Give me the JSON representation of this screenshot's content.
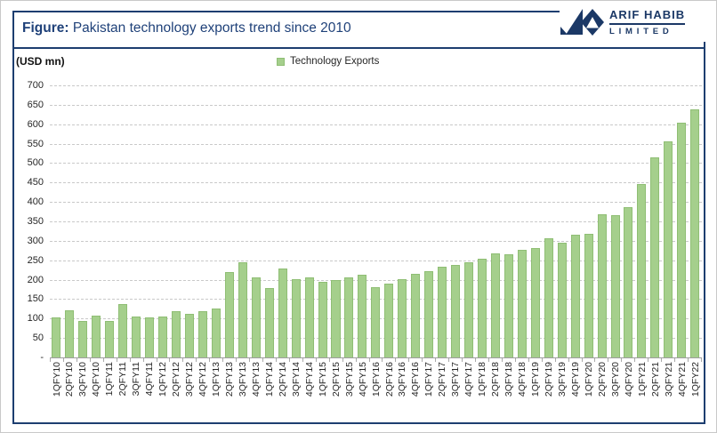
{
  "header": {
    "title_prefix": "Figure:",
    "title_text": " Pakistan technology exports trend since 2010"
  },
  "logo": {
    "name": "ARIF HABIB",
    "subtitle": "LIMITED"
  },
  "legend": {
    "label": "Technology Exports"
  },
  "y_axis": {
    "unit_label": "(USD mn)",
    "zero_label": "-"
  },
  "colors": {
    "navy": "#1d3e70",
    "bar_fill": "#a5cf8c",
    "bar_border": "#8fbe74",
    "gridline": "#c9c9c9",
    "axis": "#9e9e9e",
    "label_text": "#262626"
  },
  "chart_data": {
    "type": "bar",
    "title": "Pakistan technology exports trend since 2010",
    "ylabel": "(USD mn)",
    "series_name": "Technology Exports",
    "ylim": [
      0,
      700
    ],
    "ytick_step": 50,
    "grid": "horizontal-dashed",
    "legend_position": "top-center",
    "x_label_rotation": -90,
    "categories": [
      "1QFY10",
      "2QFY10",
      "3QFY10",
      "4QFY10",
      "1QFY11",
      "2QFY11",
      "3QFY11",
      "4QFY11",
      "1QFY12",
      "2QFY12",
      "3QFY12",
      "4QFY12",
      "1QFY13",
      "2QFY13",
      "3QFY13",
      "4QFY13",
      "1QFY14",
      "2QFY14",
      "3QFY14",
      "4QFY14",
      "1QFY15",
      "2QFY15",
      "3QFY15",
      "4QFY15",
      "1QFY16",
      "2QFY16",
      "3QFY16",
      "4QFY16",
      "1QFY17",
      "2QFY17",
      "3QFY17",
      "4QFY17",
      "1QFY18",
      "2QFY18",
      "3QFY18",
      "4QFY18",
      "1QFY19",
      "2QFY19",
      "3QFY19",
      "4QFY19",
      "1QFY20",
      "2QFY20",
      "3QFY20",
      "4QFY20",
      "1QFY21",
      "2QFY21",
      "3QFY21",
      "4QFY21",
      "1QFY22"
    ],
    "values": [
      104,
      122,
      95,
      108,
      93,
      137,
      105,
      102,
      105,
      119,
      112,
      118,
      127,
      220,
      246,
      205,
      179,
      229,
      201,
      207,
      194,
      198,
      205,
      213,
      180,
      191,
      201,
      216,
      222,
      234,
      239,
      245,
      255,
      268,
      266,
      276,
      281,
      306,
      296,
      316,
      319,
      369,
      367,
      386,
      447,
      515,
      555,
      603,
      639
    ]
  }
}
